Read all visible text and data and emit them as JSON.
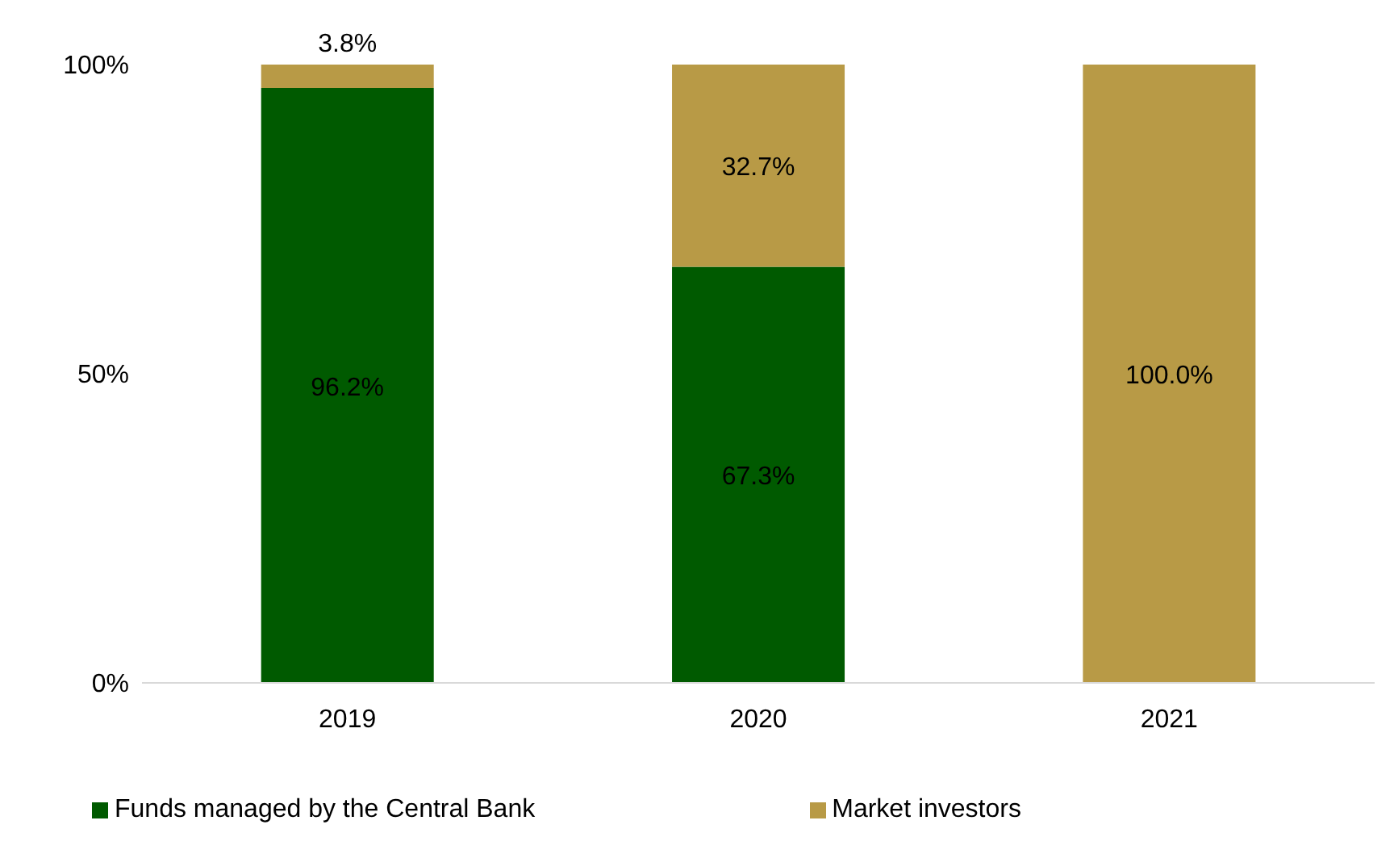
{
  "chart_data": {
    "type": "bar",
    "stacked": true,
    "categories": [
      "2019",
      "2020",
      "2021"
    ],
    "series": [
      {
        "name": "Funds managed by the Central Bank",
        "color": "#005a00",
        "values": [
          96.2,
          67.3,
          0
        ],
        "value_labels": [
          "96.2%",
          "67.3%",
          null
        ]
      },
      {
        "name": "Market investors",
        "color": "#b89a46",
        "values": [
          3.8,
          32.7,
          100.0
        ],
        "value_labels": [
          "3.8%",
          "32.7%",
          "100.0%"
        ]
      }
    ],
    "ylim": [
      0,
      100
    ],
    "yticks": [
      {
        "value": 0,
        "label": "0%"
      },
      {
        "value": 50,
        "label": "50%"
      },
      {
        "value": 100,
        "label": "100%"
      }
    ],
    "grid": false,
    "legend": "bottom"
  }
}
